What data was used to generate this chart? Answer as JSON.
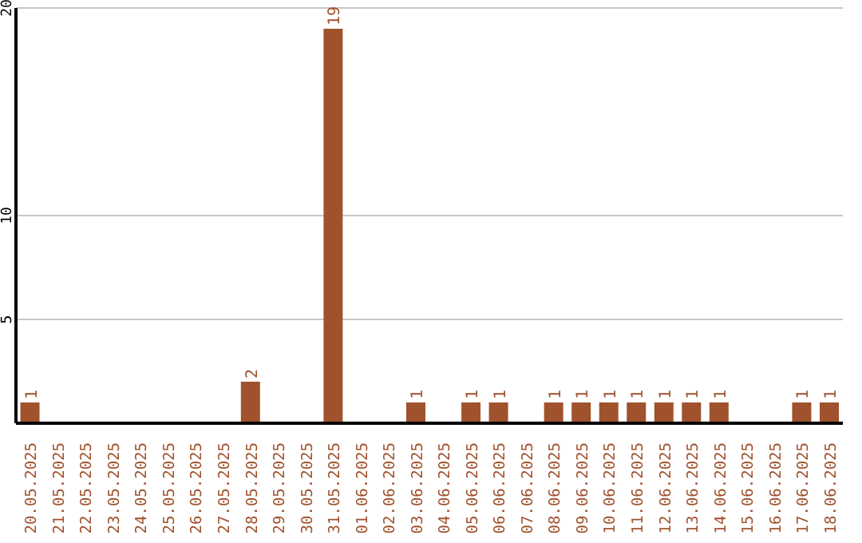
{
  "chart_data": {
    "type": "bar",
    "categories": [
      "20.05.2025",
      "21.05.2025",
      "22.05.2025",
      "23.05.2025",
      "24.05.2025",
      "25.05.2025",
      "26.05.2025",
      "27.05.2025",
      "28.05.2025",
      "29.05.2025",
      "30.05.2025",
      "31.05.2025",
      "01.06.2025",
      "02.06.2025",
      "03.06.2025",
      "04.06.2025",
      "05.06.2025",
      "06.06.2025",
      "07.06.2025",
      "08.06.2025",
      "09.06.2025",
      "10.06.2025",
      "11.06.2025",
      "12.06.2025",
      "13.06.2025",
      "14.06.2025",
      "15.06.2025",
      "16.06.2025",
      "17.06.2025",
      "18.06.2025"
    ],
    "values": [
      1,
      0,
      0,
      0,
      0,
      0,
      0,
      0,
      2,
      0,
      0,
      19,
      0,
      0,
      1,
      0,
      1,
      1,
      0,
      1,
      1,
      1,
      1,
      1,
      1,
      1,
      0,
      0,
      1,
      1
    ],
    "value_labels": [
      "1",
      null,
      null,
      null,
      null,
      null,
      null,
      null,
      "2",
      null,
      null,
      "19",
      null,
      null,
      "1",
      null,
      "1",
      "1",
      null,
      "1",
      "1",
      "1",
      "1",
      "1",
      "1",
      "1",
      null,
      null,
      "1",
      "1"
    ],
    "color": "#a0522d",
    "ylim": [
      0,
      20
    ],
    "yticks": [
      5,
      10,
      20
    ],
    "grid": "y"
  }
}
